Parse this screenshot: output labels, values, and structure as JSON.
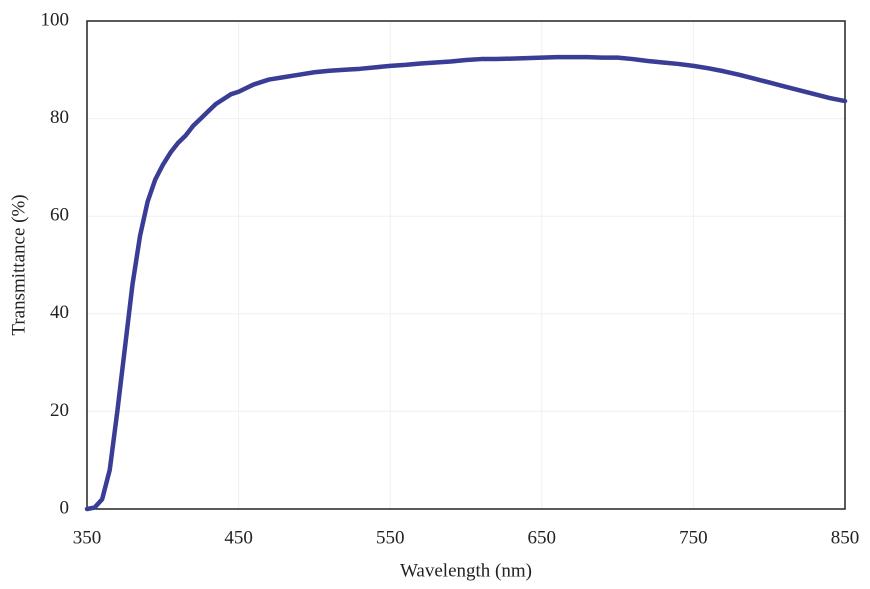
{
  "chart_data": {
    "type": "line",
    "xlabel": "Wavelength (nm)",
    "ylabel": "Transmittance (%)",
    "x": [
      350,
      355,
      360,
      365,
      370,
      375,
      380,
      385,
      390,
      395,
      400,
      405,
      410,
      415,
      420,
      425,
      430,
      435,
      440,
      445,
      450,
      460,
      470,
      480,
      490,
      500,
      510,
      520,
      530,
      540,
      550,
      560,
      570,
      580,
      590,
      600,
      610,
      620,
      630,
      640,
      650,
      660,
      670,
      680,
      690,
      700,
      710,
      720,
      730,
      740,
      750,
      760,
      770,
      780,
      790,
      800,
      810,
      820,
      830,
      840,
      850
    ],
    "values": [
      0,
      0.3,
      2,
      8,
      20,
      33,
      46,
      56,
      63,
      67.5,
      70.5,
      73,
      75,
      76.5,
      78.5,
      80,
      81.5,
      83,
      84,
      85,
      85.5,
      87,
      88,
      88.5,
      89,
      89.5,
      89.8,
      90,
      90.2,
      90.5,
      90.8,
      91,
      91.3,
      91.5,
      91.7,
      92,
      92.2,
      92.2,
      92.3,
      92.4,
      92.5,
      92.6,
      92.6,
      92.6,
      92.5,
      92.5,
      92.2,
      91.8,
      91.5,
      91.2,
      90.8,
      90.3,
      89.7,
      89,
      88.2,
      87.4,
      86.6,
      85.8,
      85,
      84.2,
      83.6
    ],
    "color": "#393d96",
    "xlim": [
      350,
      850
    ],
    "xticks": [
      350,
      450,
      550,
      650,
      750,
      850
    ],
    "ylim": [
      0,
      100
    ],
    "yticks": [
      0,
      20,
      40,
      60,
      80,
      100
    ],
    "grid": true
  }
}
